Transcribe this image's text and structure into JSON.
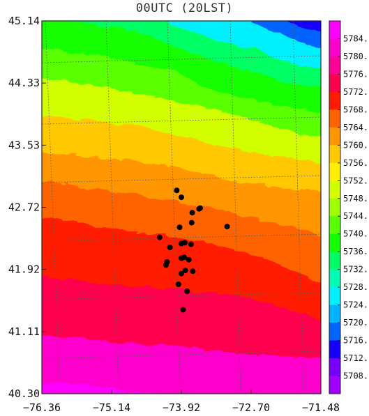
{
  "title": "00UTC (20LST)",
  "map": {
    "lat_ticks": [
      "45.14",
      "44.33",
      "43.53",
      "42.72",
      "41.92",
      "41.11",
      "40.30"
    ],
    "lon_ticks": [
      "−76.36",
      "−75.14",
      "−73.92",
      "−72.70",
      "−71.48"
    ],
    "lat_range": [
      40.3,
      45.14
    ],
    "lon_range": [
      -76.36,
      -71.48
    ],
    "grid": "dotted",
    "stations": [
      {
        "lon": -74.0,
        "lat": 42.94
      },
      {
        "lon": -73.92,
        "lat": 42.85
      },
      {
        "lon": -73.59,
        "lat": 42.71
      },
      {
        "lon": -73.61,
        "lat": 42.7
      },
      {
        "lon": -73.73,
        "lat": 42.65
      },
      {
        "lon": -73.12,
        "lat": 42.47
      },
      {
        "lon": -73.74,
        "lat": 42.52
      },
      {
        "lon": -73.95,
        "lat": 42.46
      },
      {
        "lon": -74.3,
        "lat": 42.33
      },
      {
        "lon": -73.86,
        "lat": 42.26
      },
      {
        "lon": -73.92,
        "lat": 42.25
      },
      {
        "lon": -73.75,
        "lat": 42.24
      },
      {
        "lon": -74.12,
        "lat": 42.2
      },
      {
        "lon": -73.87,
        "lat": 42.07
      },
      {
        "lon": -73.92,
        "lat": 42.06
      },
      {
        "lon": -73.79,
        "lat": 42.04
      },
      {
        "lon": -74.17,
        "lat": 42.01
      },
      {
        "lon": -74.19,
        "lat": 41.97
      },
      {
        "lon": -73.85,
        "lat": 41.9
      },
      {
        "lon": -73.92,
        "lat": 41.86
      },
      {
        "lon": -73.72,
        "lat": 41.89
      },
      {
        "lon": -73.97,
        "lat": 41.72
      },
      {
        "lon": -73.82,
        "lat": 41.63
      },
      {
        "lon": -73.89,
        "lat": 41.39
      }
    ]
  },
  "colorbar": {
    "labels": [
      "5784.",
      "5780.",
      "5776.",
      "5772.",
      "5768.",
      "5764.",
      "5760.",
      "5756.",
      "5752.",
      "5748.",
      "5744.",
      "5740.",
      "5736.",
      "5732.",
      "5728.",
      "5724.",
      "5720.",
      "5716.",
      "5712.",
      "5708."
    ],
    "colors": [
      "#ff00ff",
      "#ff00cc",
      "#ff0099",
      "#ff0050",
      "#ff1a00",
      "#ff6400",
      "#ff9600",
      "#ffc800",
      "#fff000",
      "#d2ff00",
      "#a0ff00",
      "#5aff00",
      "#14ff00",
      "#00ff64",
      "#00ffb4",
      "#00f0ff",
      "#00b4ff",
      "#0064ff",
      "#1400ff",
      "#7800ff",
      "#a000ff"
    ]
  }
}
